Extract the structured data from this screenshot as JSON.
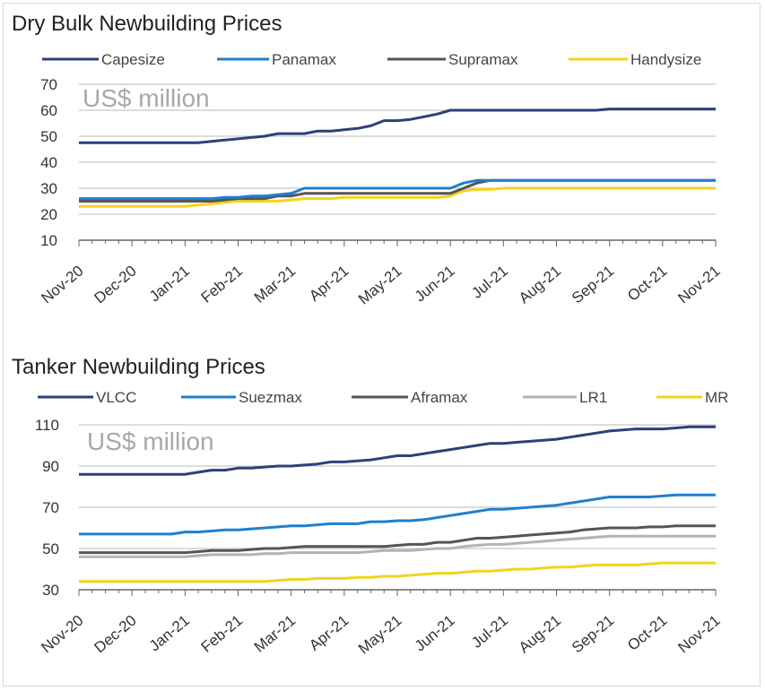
{
  "chart_data": [
    {
      "type": "line",
      "title": "Dry Bulk Newbuilding Prices",
      "unit_label": "US$ million",
      "legend_position": "top",
      "ylim": [
        10,
        70
      ],
      "yticks": [
        10,
        20,
        30,
        40,
        50,
        60,
        70
      ],
      "grid": true,
      "categories": [
        "Nov-20",
        "Dec-20",
        "Jan-21",
        "Feb-21",
        "Mar-21",
        "Apr-21",
        "May-21",
        "Jun-21",
        "Jul-21",
        "Aug-21",
        "Sep-21",
        "Oct-21",
        "Nov-21"
      ],
      "x": [
        0,
        0.25,
        0.5,
        0.75,
        1,
        1.25,
        1.5,
        1.75,
        2,
        2.25,
        2.5,
        2.75,
        3,
        3.25,
        3.5,
        3.75,
        4,
        4.25,
        4.5,
        4.75,
        5,
        5.25,
        5.5,
        5.75,
        6,
        6.25,
        6.5,
        6.75,
        7,
        7.25,
        7.5,
        7.75,
        8,
        8.25,
        8.5,
        8.75,
        9,
        9.25,
        9.5,
        9.75,
        10,
        10.25,
        10.5,
        10.75,
        11,
        11.25,
        11.5,
        11.75,
        12
      ],
      "series": [
        {
          "name": "Capesize",
          "color": "#2e3f7a",
          "values": [
            47.5,
            47.5,
            47.5,
            47.5,
            47.5,
            47.5,
            47.5,
            47.5,
            47.5,
            47.5,
            48,
            48.5,
            49,
            49.5,
            50,
            51,
            51,
            51,
            52,
            52,
            52.5,
            53,
            54,
            56,
            56,
            56.5,
            57.5,
            58.5,
            60,
            60,
            60,
            60,
            60,
            60,
            60,
            60,
            60,
            60,
            60,
            60,
            60.5,
            60.5,
            60.5,
            60.5,
            60.5,
            60.5,
            60.5,
            60.5,
            60.5
          ]
        },
        {
          "name": "Panamax",
          "color": "#1f7fcf",
          "values": [
            26,
            26,
            26,
            26,
            26,
            26,
            26,
            26,
            26,
            26,
            26,
            26.5,
            26.5,
            27,
            27,
            27.5,
            28,
            30,
            30,
            30,
            30,
            30,
            30,
            30,
            30,
            30,
            30,
            30,
            30,
            32,
            33,
            33,
            33,
            33,
            33,
            33,
            33,
            33,
            33,
            33,
            33,
            33,
            33,
            33,
            33,
            33,
            33,
            33,
            33
          ]
        },
        {
          "name": "Supramax",
          "color": "#555555",
          "values": [
            25,
            25,
            25,
            25,
            25,
            25,
            25,
            25,
            25,
            25,
            25,
            25.5,
            26,
            26,
            26,
            27,
            27,
            28,
            28,
            28,
            28,
            28,
            28,
            28,
            28,
            28,
            28,
            28,
            28,
            30,
            32,
            33,
            33,
            33,
            33,
            33,
            33,
            33,
            33,
            33,
            33,
            33,
            33,
            33,
            33,
            33,
            33,
            33,
            33
          ]
        },
        {
          "name": "Handysize",
          "color": "#f2d51b",
          "values": [
            23,
            23,
            23,
            23,
            23,
            23,
            23,
            23,
            23,
            23.5,
            24,
            24.5,
            25,
            25,
            25,
            25,
            25.5,
            26,
            26,
            26,
            26.5,
            26.5,
            26.5,
            26.5,
            26.5,
            26.5,
            26.5,
            26.5,
            27,
            29,
            29.5,
            29.5,
            30,
            30,
            30,
            30,
            30,
            30,
            30,
            30,
            30,
            30,
            30,
            30,
            30,
            30,
            30,
            30,
            30
          ]
        }
      ]
    },
    {
      "type": "line",
      "title": "Tanker Newbuilding Prices",
      "unit_label": "US$ million",
      "legend_position": "top",
      "ylim": [
        30,
        110
      ],
      "yticks": [
        30,
        50,
        70,
        90,
        110
      ],
      "grid": true,
      "categories": [
        "Nov-20",
        "Dec-20",
        "Jan-21",
        "Feb-21",
        "Mar-21",
        "Apr-21",
        "May-21",
        "Jun-21",
        "Jul-21",
        "Aug-21",
        "Sep-21",
        "Oct-21",
        "Nov-21"
      ],
      "x": [
        0,
        0.25,
        0.5,
        0.75,
        1,
        1.25,
        1.5,
        1.75,
        2,
        2.25,
        2.5,
        2.75,
        3,
        3.25,
        3.5,
        3.75,
        4,
        4.25,
        4.5,
        4.75,
        5,
        5.25,
        5.5,
        5.75,
        6,
        6.25,
        6.5,
        6.75,
        7,
        7.25,
        7.5,
        7.75,
        8,
        8.25,
        8.5,
        8.75,
        9,
        9.25,
        9.5,
        9.75,
        10,
        10.25,
        10.5,
        10.75,
        11,
        11.25,
        11.5,
        11.75,
        12
      ],
      "series": [
        {
          "name": "VLCC",
          "color": "#2e3f7a",
          "values": [
            86,
            86,
            86,
            86,
            86,
            86,
            86,
            86,
            86,
            87,
            88,
            88,
            89,
            89,
            89.5,
            90,
            90,
            90.5,
            91,
            92,
            92,
            92.5,
            93,
            94,
            95,
            95,
            96,
            97,
            98,
            99,
            100,
            101,
            101,
            101.5,
            102,
            102.5,
            103,
            104,
            105,
            106,
            107,
            107.5,
            108,
            108,
            108,
            108.5,
            109,
            109,
            109
          ]
        },
        {
          "name": "Suezmax",
          "color": "#1f7fcf",
          "values": [
            57,
            57,
            57,
            57,
            57,
            57,
            57,
            57,
            58,
            58,
            58.5,
            59,
            59,
            59.5,
            60,
            60.5,
            61,
            61,
            61.5,
            62,
            62,
            62,
            63,
            63,
            63.5,
            63.5,
            64,
            65,
            66,
            67,
            68,
            69,
            69,
            69.5,
            70,
            70.5,
            71,
            72,
            73,
            74,
            75,
            75,
            75,
            75,
            75.5,
            76,
            76,
            76,
            76
          ]
        },
        {
          "name": "Aframax",
          "color": "#555555",
          "values": [
            48,
            48,
            48,
            48,
            48,
            48,
            48,
            48,
            48,
            48.5,
            49,
            49,
            49,
            49.5,
            50,
            50,
            50.5,
            51,
            51,
            51,
            51,
            51,
            51,
            51,
            51.5,
            52,
            52,
            53,
            53,
            54,
            55,
            55,
            55.5,
            56,
            56.5,
            57,
            57.5,
            58,
            59,
            59.5,
            60,
            60,
            60,
            60.5,
            60.5,
            61,
            61,
            61,
            61
          ]
        },
        {
          "name": "LR1",
          "color": "#b3b3b3",
          "values": [
            46,
            46,
            46,
            46,
            46,
            46,
            46,
            46,
            46,
            46.5,
            47,
            47,
            47,
            47,
            47.5,
            47.5,
            48,
            48,
            48,
            48,
            48,
            48,
            48.5,
            49,
            49,
            49,
            49.5,
            50,
            50,
            51,
            51.5,
            52,
            52,
            52.5,
            53,
            53.5,
            54,
            54.5,
            55,
            55.5,
            56,
            56,
            56,
            56,
            56,
            56,
            56,
            56,
            56
          ]
        },
        {
          "name": "MR",
          "color": "#f2d51b",
          "values": [
            34,
            34,
            34,
            34,
            34,
            34,
            34,
            34,
            34,
            34,
            34,
            34,
            34,
            34,
            34,
            34.5,
            35,
            35,
            35.5,
            35.5,
            35.5,
            36,
            36,
            36.5,
            36.5,
            37,
            37.5,
            38,
            38,
            38.5,
            39,
            39,
            39.5,
            40,
            40,
            40.5,
            41,
            41,
            41.5,
            42,
            42,
            42,
            42,
            42.5,
            43,
            43,
            43,
            43,
            43
          ]
        }
      ]
    }
  ]
}
